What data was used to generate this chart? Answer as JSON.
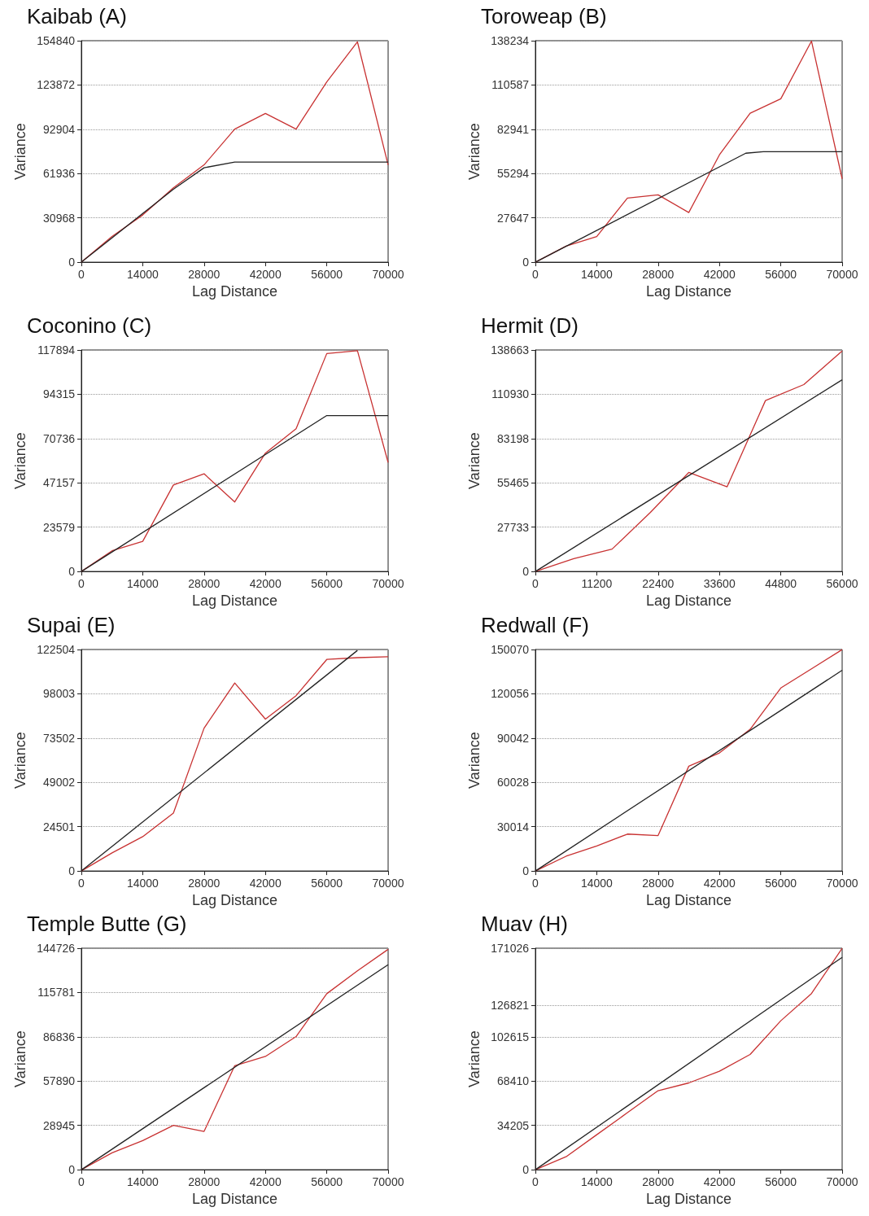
{
  "chart_data": [
    {
      "type": "line",
      "title": "Kaibab (A)",
      "xlabel": "Lag Distance",
      "ylabel": "Variance",
      "xlim": [
        0,
        70000
      ],
      "xticks": [
        0,
        14000,
        28000,
        42000,
        56000,
        70000
      ],
      "ylim": [
        0,
        154840
      ],
      "yticks": [
        0,
        30968,
        61936,
        92904,
        123872,
        154840
      ],
      "grid": "y",
      "marker": "none",
      "line_style": "solid",
      "series": [
        {
          "color": "#c83232",
          "x": [
            0,
            7000,
            14000,
            21000,
            28000,
            35000,
            42000,
            49000,
            56000,
            63000,
            70000
          ],
          "values": [
            0,
            18000,
            33000,
            52000,
            68000,
            93000,
            104000,
            93000,
            126000,
            154000,
            68000
          ]
        },
        {
          "color": "#222222",
          "x": [
            0,
            7000,
            14000,
            21000,
            28000,
            35000,
            70000
          ],
          "values": [
            0,
            17000,
            34000,
            51000,
            66000,
            70000,
            70000
          ]
        }
      ]
    },
    {
      "type": "line",
      "title": "Toroweap (B)",
      "xlabel": "Lag Distance",
      "ylabel": "Variance",
      "xlim": [
        0,
        70000
      ],
      "xticks": [
        0,
        14000,
        28000,
        42000,
        56000,
        70000
      ],
      "ylim": [
        0,
        138234
      ],
      "yticks": [
        0,
        27647,
        55294,
        82941,
        110587,
        138234
      ],
      "grid": "y",
      "marker": "none",
      "line_style": "solid",
      "series": [
        {
          "color": "#c83232",
          "x": [
            0,
            7000,
            14000,
            21000,
            28000,
            35000,
            42000,
            49000,
            56000,
            63000,
            70000
          ],
          "values": [
            0,
            10000,
            16000,
            40000,
            42000,
            31000,
            67000,
            93000,
            102000,
            138000,
            52000
          ]
        },
        {
          "color": "#222222",
          "x": [
            0,
            48000,
            52000,
            70000
          ],
          "values": [
            0,
            68000,
            69000,
            69000
          ]
        }
      ]
    },
    {
      "type": "line",
      "title": "Coconino (C)",
      "xlabel": "Lag Distance",
      "ylabel": "Variance",
      "xlim": [
        0,
        70000
      ],
      "xticks": [
        0,
        14000,
        28000,
        42000,
        56000,
        70000
      ],
      "ylim": [
        0,
        117894
      ],
      "yticks": [
        0,
        23579,
        47157,
        70736,
        94315,
        117894
      ],
      "grid": "y",
      "marker": "none",
      "line_style": "solid",
      "series": [
        {
          "color": "#c83232",
          "x": [
            0,
            7000,
            14000,
            21000,
            28000,
            35000,
            42000,
            49000,
            56000,
            63000,
            70000
          ],
          "values": [
            0,
            11000,
            16000,
            46000,
            52000,
            37000,
            63000,
            76000,
            116000,
            117500,
            58000
          ]
        },
        {
          "color": "#222222",
          "x": [
            0,
            56000,
            70000
          ],
          "values": [
            0,
            83000,
            83000
          ]
        }
      ]
    },
    {
      "type": "line",
      "title": "Hermit (D)",
      "xlabel": "Lag Distance",
      "ylabel": "Variance",
      "xlim": [
        0,
        56000
      ],
      "xticks": [
        0,
        11200,
        22400,
        33600,
        44800,
        56000
      ],
      "ylim": [
        0,
        138663
      ],
      "yticks": [
        0,
        27733,
        55465,
        83198,
        110930,
        138663
      ],
      "grid": "y",
      "marker": "none",
      "line_style": "solid",
      "series": [
        {
          "color": "#c83232",
          "x": [
            0,
            7000,
            14000,
            21000,
            28000,
            35000,
            42000,
            49000,
            56000
          ],
          "values": [
            0,
            8000,
            14000,
            37000,
            62000,
            53000,
            107000,
            117000,
            138000
          ]
        },
        {
          "color": "#222222",
          "x": [
            0,
            56000
          ],
          "values": [
            0,
            120000
          ]
        }
      ]
    },
    {
      "type": "line",
      "title": "Supai (E)",
      "xlabel": "Lag Distance",
      "ylabel": "Variance",
      "xlim": [
        0,
        70000
      ],
      "xticks": [
        0,
        14000,
        28000,
        42000,
        56000,
        70000
      ],
      "ylim": [
        0,
        122504
      ],
      "yticks": [
        0,
        24501,
        49002,
        73502,
        98003,
        122504
      ],
      "grid": "y",
      "marker": "none",
      "line_style": "solid",
      "series": [
        {
          "color": "#c83232",
          "x": [
            0,
            7000,
            14000,
            21000,
            28000,
            35000,
            42000,
            49000,
            56000,
            63000,
            70000
          ],
          "values": [
            0,
            10000,
            19000,
            32000,
            79000,
            104000,
            84000,
            97000,
            117000,
            118000,
            118500
          ]
        },
        {
          "color": "#222222",
          "x": [
            0,
            63000
          ],
          "values": [
            0,
            122000
          ]
        }
      ]
    },
    {
      "type": "line",
      "title": "Redwall (F)",
      "xlabel": "Lag Distance",
      "ylabel": "Variance",
      "xlim": [
        0,
        70000
      ],
      "xticks": [
        0,
        14000,
        28000,
        42000,
        56000,
        70000
      ],
      "ylim": [
        0,
        150070
      ],
      "yticks": [
        0,
        30014,
        60028,
        90042,
        120056,
        150070
      ],
      "grid": "y",
      "marker": "none",
      "line_style": "solid",
      "series": [
        {
          "color": "#c83232",
          "x": [
            0,
            7000,
            14000,
            21000,
            28000,
            35000,
            42000,
            49000,
            56000,
            63000,
            70000
          ],
          "values": [
            0,
            10000,
            17000,
            25000,
            24000,
            71000,
            80000,
            96000,
            124000,
            137000,
            150000
          ]
        },
        {
          "color": "#222222",
          "x": [
            0,
            70000
          ],
          "values": [
            0,
            136000
          ]
        }
      ]
    },
    {
      "type": "line",
      "title": "Temple Butte (G)",
      "xlabel": "Lag Distance",
      "ylabel": "Variance",
      "xlim": [
        0,
        70000
      ],
      "xticks": [
        0,
        14000,
        28000,
        42000,
        56000,
        70000
      ],
      "ylim": [
        0,
        144726
      ],
      "yticks": [
        0,
        28945,
        57890,
        86836,
        115781,
        144726
      ],
      "grid": "y",
      "marker": "none",
      "line_style": "solid",
      "series": [
        {
          "color": "#c83232",
          "x": [
            0,
            7000,
            14000,
            21000,
            28000,
            35000,
            42000,
            49000,
            56000,
            63000,
            70000
          ],
          "values": [
            0,
            11000,
            19000,
            29000,
            25000,
            68000,
            74000,
            87000,
            115000,
            130000,
            144000
          ]
        },
        {
          "color": "#222222",
          "x": [
            0,
            70000
          ],
          "values": [
            0,
            134000
          ]
        }
      ]
    },
    {
      "type": "line",
      "title": "Muav (H)",
      "xlabel": "Lag Distance",
      "ylabel": "Variance",
      "xlim": [
        0,
        70000
      ],
      "xticks": [
        0,
        14000,
        28000,
        42000,
        56000,
        70000
      ],
      "ylim": [
        0,
        171026
      ],
      "yticks": [
        0,
        34205,
        68410,
        102615,
        126821,
        171026
      ],
      "grid": "y",
      "marker": "none",
      "line_style": "solid",
      "series": [
        {
          "color": "#c83232",
          "x": [
            0,
            7000,
            14000,
            21000,
            28000,
            35000,
            42000,
            49000,
            56000,
            63000,
            70000
          ],
          "values": [
            0,
            10000,
            27000,
            44000,
            61000,
            67000,
            76000,
            89000,
            115000,
            136000,
            171000
          ]
        },
        {
          "color": "#222222",
          "x": [
            0,
            70000
          ],
          "values": [
            0,
            164000
          ]
        }
      ]
    }
  ]
}
